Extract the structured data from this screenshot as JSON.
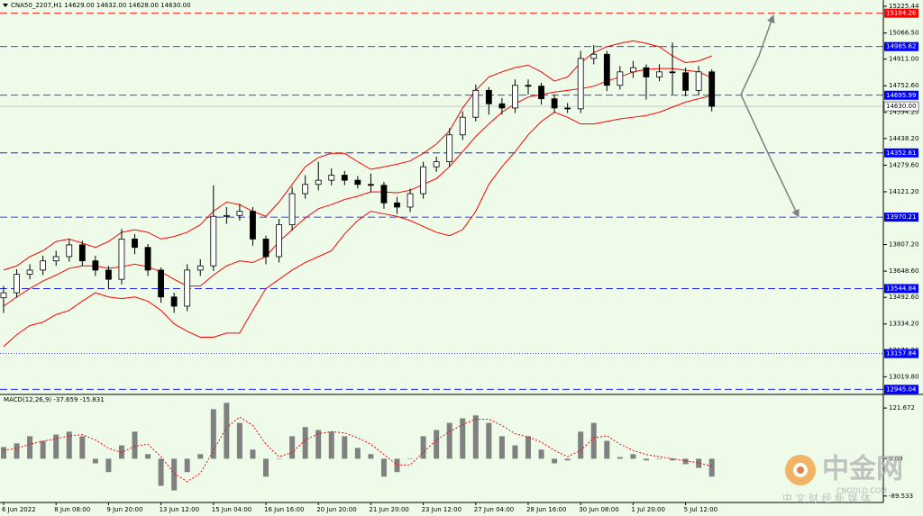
{
  "chart_data": [
    {
      "type": "candlestick",
      "title": "CNA50_2207,H1  14629.00 14632.00 14628.00 14630.00",
      "categories": [
        "6 Jun 2022",
        null,
        null,
        null,
        "8 Jun 08:00",
        null,
        null,
        null,
        "9 Jun 20:00",
        null,
        null,
        null,
        "13 Jun 12:00",
        null,
        null,
        null,
        "15 Jun 04:00",
        null,
        null,
        null,
        "16 Jun 16:00",
        null,
        null,
        null,
        "20 Jun 20:00",
        null,
        null,
        null,
        "21 Jun 20:00",
        null,
        null,
        null,
        "23 Jun 12:00",
        null,
        null,
        null,
        "27 Jun 04:00",
        null,
        null,
        null,
        "28 Jun 16:00",
        null,
        null,
        null,
        "30 Jun 08:00",
        null,
        null,
        null,
        "1 Jul 20:00",
        null,
        null,
        null,
        "5 Jul 12:00",
        null,
        null
      ],
      "open": [
        13490,
        13520,
        13630,
        13655,
        13710,
        13735,
        13805,
        13710,
        13655,
        13600,
        13840,
        13790,
        13655,
        13495,
        13440,
        13655,
        13680,
        13975,
        13980,
        14005,
        13840,
        13735,
        13925,
        14110,
        14165,
        14190,
        14220,
        14190,
        14165,
        14160,
        14055,
        14030,
        14110,
        14270,
        14300,
        14460,
        14565,
        14725,
        14645,
        14620,
        14755,
        14750,
        14675,
        14620,
        14615,
        14915,
        14940,
        14755,
        14835,
        14860,
        14805,
        14835,
        14830,
        14725,
        14835
      ],
      "high": [
        13560,
        13660,
        13690,
        13740,
        13770,
        13840,
        13830,
        13740,
        13680,
        13900,
        13870,
        13810,
        13670,
        13520,
        13690,
        13720,
        14160,
        14030,
        14050,
        14030,
        13860,
        13960,
        14150,
        14220,
        14300,
        14260,
        14245,
        14215,
        14230,
        14180,
        14090,
        14140,
        14300,
        14330,
        14500,
        14600,
        14760,
        14745,
        14680,
        14790,
        14790,
        14770,
        14700,
        14650,
        14960,
        14995,
        14960,
        14870,
        14900,
        14880,
        14880,
        15010,
        14860,
        14870,
        14850
      ],
      "low": [
        13400,
        13490,
        13600,
        13625,
        13680,
        13705,
        13680,
        13620,
        13540,
        13570,
        13750,
        13620,
        13460,
        13400,
        13410,
        13620,
        13650,
        13930,
        13950,
        13800,
        13690,
        13700,
        13890,
        14080,
        14130,
        14160,
        14160,
        14140,
        14120,
        14020,
        13990,
        14000,
        14080,
        14240,
        14270,
        14430,
        14540,
        14580,
        14580,
        14590,
        14700,
        14640,
        14590,
        14590,
        14590,
        14880,
        14720,
        14730,
        14800,
        14670,
        14780,
        14700,
        14690,
        14700,
        14600
      ],
      "close": [
        13520,
        13630,
        13655,
        13710,
        13735,
        13805,
        13710,
        13655,
        13600,
        13840,
        13790,
        13655,
        13495,
        13440,
        13655,
        13680,
        13975,
        13980,
        14005,
        13840,
        13735,
        13925,
        14110,
        14165,
        14190,
        14220,
        14190,
        14165,
        14160,
        14055,
        14030,
        14110,
        14270,
        14300,
        14460,
        14565,
        14725,
        14645,
        14620,
        14755,
        14750,
        14675,
        14620,
        14615,
        14915,
        14940,
        14755,
        14835,
        14860,
        14805,
        14835,
        14830,
        14725,
        14835,
        14630
      ],
      "up_color": "#ffffff",
      "down_color": "#000000",
      "series": [
        {
          "color": "#ff0000",
          "values": [
            13655,
            13680,
            13735,
            13770,
            13825,
            13840,
            13815,
            13790,
            13825,
            13880,
            13895,
            13880,
            13840,
            13855,
            13880,
            13925,
            14005,
            14060,
            14045,
            14005,
            13975,
            14060,
            14165,
            14270,
            14325,
            14350,
            14350,
            14300,
            14255,
            14270,
            14285,
            14305,
            14350,
            14405,
            14485,
            14620,
            14725,
            14805,
            14835,
            14860,
            14875,
            14835,
            14780,
            14805,
            14890,
            14950,
            14985,
            15005,
            15020,
            15005,
            14985,
            14930,
            14890,
            14900,
            14930
          ]
        },
        {
          "color": "#ff0000",
          "values": [
            13440,
            13495,
            13545,
            13590,
            13625,
            13665,
            13680,
            13680,
            13665,
            13675,
            13690,
            13675,
            13645,
            13600,
            13560,
            13560,
            13625,
            13680,
            13710,
            13700,
            13735,
            13825,
            13895,
            13965,
            14020,
            14045,
            14075,
            14095,
            14120,
            14120,
            14115,
            14130,
            14165,
            14200,
            14270,
            14360,
            14450,
            14525,
            14595,
            14645,
            14685,
            14700,
            14715,
            14725,
            14735,
            14750,
            14780,
            14805,
            14835,
            14850,
            14855,
            14855,
            14845,
            14835,
            14800
          ]
        },
        {
          "color": "#ff0000",
          "values": [
            13200,
            13270,
            13325,
            13345,
            13390,
            13415,
            13470,
            13520,
            13495,
            13485,
            13495,
            13470,
            13415,
            13335,
            13290,
            13255,
            13255,
            13280,
            13280,
            13415,
            13545,
            13600,
            13655,
            13700,
            13735,
            13770,
            13870,
            13950,
            14005,
            13990,
            13975,
            13950,
            13915,
            13880,
            13860,
            13895,
            14005,
            14165,
            14270,
            14360,
            14460,
            14540,
            14595,
            14565,
            14525,
            14525,
            14540,
            14555,
            14565,
            14575,
            14595,
            14625,
            14655,
            14675,
            14695
          ]
        }
      ],
      "levels": [
        {
          "value": 15184.26,
          "color": "#ff0000",
          "style": "dashed"
        },
        {
          "value": 14985.62,
          "color": "#0000ff",
          "style": "dashed"
        },
        {
          "value": 14695.99,
          "color": "#0000ff",
          "style": "dashed"
        },
        {
          "value": 14630,
          "label": "14630.00",
          "color": "#c0c0c0",
          "style": "solid"
        },
        {
          "value": 14352.61,
          "color": "#0000ff",
          "style": "dashed"
        },
        {
          "value": 13970.21,
          "color": "#0000ff",
          "style": "dashed"
        },
        {
          "value": 13544.84,
          "color": "#0000ff",
          "style": "dashed"
        },
        {
          "value": 13157.84,
          "color": "#0000ff",
          "style": "dotted"
        },
        {
          "value": 12945.04,
          "color": "#0000ff",
          "style": "dashed"
        }
      ],
      "ylim": [
        12920,
        15263
      ],
      "yticks": [
        15225.44,
        {
          "value": 15066.5,
          "label": "15066.50"
        },
        {
          "value": 14911,
          "label": "14911.00"
        },
        {
          "value": 14752.6,
          "label": "14752.60"
        },
        {
          "value": 14594.2,
          "label": "14594.20"
        },
        {
          "value": 14438.2,
          "label": "14438.20"
        },
        {
          "value": 14279.6,
          "label": "14279.60"
        },
        {
          "value": 14121.2,
          "label": "14121.20"
        },
        {
          "value": 13807.2,
          "label": "13807.20"
        },
        {
          "value": 13648.6,
          "label": "13648.60"
        },
        {
          "value": 13492.6,
          "label": "13492.60"
        },
        {
          "value": 13334.2,
          "label": "13334.20"
        },
        {
          "value": 13176.8,
          "label": "13176.80"
        },
        {
          "value": 13019.8,
          "label": "13019.80"
        }
      ]
    },
    {
      "type": "macd",
      "title": "MACD(12,26,9) -37.659 -15.831",
      "histogram": {
        "color": "#808080",
        "values": [
          28,
          37,
          54,
          43,
          58,
          65,
          54,
          -11,
          -32,
          32,
          65,
          11,
          -65,
          -76,
          -32,
          11,
          119,
          134,
          86,
          22,
          -43,
          0,
          54,
          76,
          69,
          65,
          54,
          26,
          11,
          -43,
          -32,
          0,
          54,
          69,
          86,
          97,
          104,
          86,
          54,
          32,
          54,
          22,
          -11,
          -4,
          65,
          86,
          43,
          4,
          11,
          -4,
          0,
          -4,
          -13,
          -22,
          -43
        ]
      },
      "signal": {
        "color": "#ff0000",
        "values": [
          20,
          25,
          35,
          42,
          48,
          55,
          58,
          45,
          25,
          15,
          30,
          35,
          5,
          -35,
          -55,
          -35,
          20,
          75,
          100,
          80,
          35,
          5,
          15,
          45,
          60,
          65,
          62,
          50,
          35,
          10,
          -15,
          -15,
          15,
          45,
          65,
          82,
          95,
          95,
          80,
          60,
          52,
          40,
          20,
          5,
          20,
          50,
          55,
          35,
          20,
          10,
          5,
          0,
          -5,
          -10,
          -18
        ]
      },
      "ylim": [
        -105,
        150
      ],
      "yticks": [
        121.672,
        {
          "value": 0,
          "label": "0.00"
        },
        -89.533
      ]
    }
  ],
  "watermark": {
    "name": "中金网",
    "site": "CNGOLD.COM",
    "tagline": "中 文 财 经 新 媒 体"
  }
}
